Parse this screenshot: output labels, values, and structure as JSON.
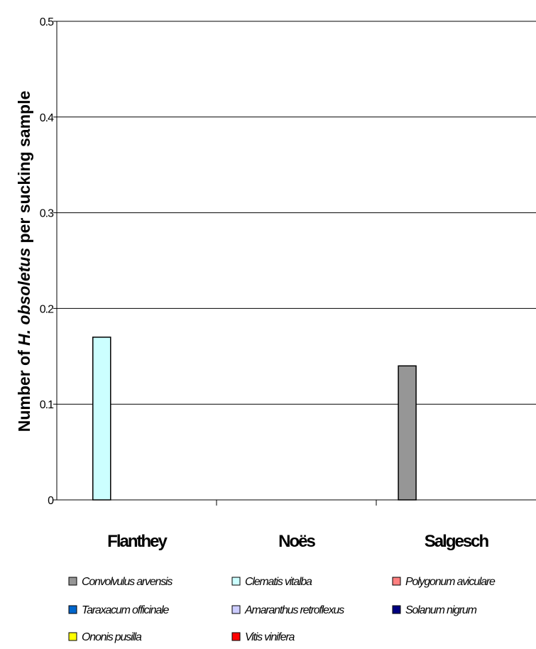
{
  "chart_data": {
    "type": "bar",
    "ylabel_parts": [
      "Number of ",
      "H. obsoletus",
      " per sucking sample"
    ],
    "ylim": [
      0,
      0.5
    ],
    "yticks": [
      "0",
      "0.1",
      "0.2",
      "0.3",
      "0.4",
      "0.5"
    ],
    "ytick_values": [
      0,
      0.1,
      0.2,
      0.3,
      0.4,
      0.5
    ],
    "grid": true,
    "legend_position": "bottom",
    "categories": [
      "Flanthey",
      "Noës",
      "Salgesch"
    ],
    "series": [
      {
        "name": "Convolvulus arvensis",
        "color": "#969696",
        "values": [
          0,
          0,
          0.14
        ]
      },
      {
        "name": "Clematis vitalba",
        "color": "#ccffff",
        "values": [
          0.17,
          0,
          0
        ]
      },
      {
        "name": "Polygonum aviculare",
        "color": "#ff8080",
        "values": [
          0,
          0,
          0
        ]
      },
      {
        "name": "Taraxacum officinale",
        "color": "#0066cc",
        "values": [
          0,
          0,
          0
        ]
      },
      {
        "name": "Amaranthus retroflexus",
        "color": "#ccccff",
        "values": [
          0,
          0,
          0
        ]
      },
      {
        "name": "Solanum nigrum",
        "color": "#000080",
        "values": [
          0,
          0,
          0
        ]
      },
      {
        "name": "Ononis pusilla",
        "color": "#ffff00",
        "values": [
          0,
          0,
          0
        ]
      },
      {
        "name": "Vitis vinifera",
        "color": "#ff0000",
        "values": [
          0,
          0,
          0
        ]
      }
    ]
  }
}
